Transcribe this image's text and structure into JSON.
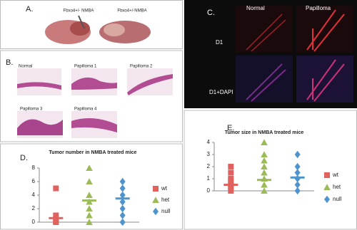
{
  "panels": {
    "a": {
      "label": "A.",
      "captions": [
        "Fbxo4+/- NMBA",
        "Fbxo4+/-NMBA"
      ]
    },
    "b": {
      "label": "B.",
      "captions": [
        "Normal",
        "Papilloma 1",
        "Papilloma 2",
        "Papilloma 3",
        "Papilloma 4"
      ]
    },
    "c": {
      "label": "C.",
      "columns": [
        "Normal",
        "Papilloma"
      ],
      "rows": [
        "D1",
        "D1+DAPI"
      ]
    },
    "d": {
      "label": "D."
    },
    "e": {
      "label": "E."
    }
  },
  "chart_data": [
    {
      "type": "scatter",
      "title": "Tumor number in NMBA treated mice",
      "ylim": [
        0,
        8
      ],
      "yticks": [
        0,
        2,
        4,
        6,
        8
      ],
      "series": [
        {
          "name": "wt",
          "color": "#e0615e",
          "marker": "square",
          "values": [
            5,
            1,
            0.5,
            0,
            0
          ],
          "mean": 0.6
        },
        {
          "name": "het",
          "color": "#9bbb59",
          "marker": "triangle",
          "values": [
            8,
            6,
            4,
            3,
            2,
            1,
            0
          ],
          "mean": 3.2
        },
        {
          "name": "null",
          "color": "#4f94cd",
          "marker": "diamond",
          "values": [
            6,
            5,
            4,
            3,
            2,
            1,
            0
          ],
          "mean": 3.5
        }
      ]
    },
    {
      "type": "scatter",
      "title": "Tumor size in NMBA treated mice",
      "ylim": [
        0,
        4
      ],
      "yticks": [
        0,
        1,
        2,
        3,
        4
      ],
      "series": [
        {
          "name": "wt",
          "color": "#e0615e",
          "marker": "square",
          "values": [
            2,
            1.5,
            1,
            0.8,
            0.5,
            0.3,
            0
          ],
          "mean": 0.5
        },
        {
          "name": "het",
          "color": "#9bbb59",
          "marker": "triangle",
          "values": [
            4,
            3,
            2.5,
            2,
            1.5,
            1,
            0.5,
            0
          ],
          "mean": 0.9
        },
        {
          "name": "null",
          "color": "#4f94cd",
          "marker": "diamond",
          "values": [
            3,
            2,
            1.5,
            1,
            0.5,
            0
          ],
          "mean": 1.1
        }
      ]
    }
  ]
}
